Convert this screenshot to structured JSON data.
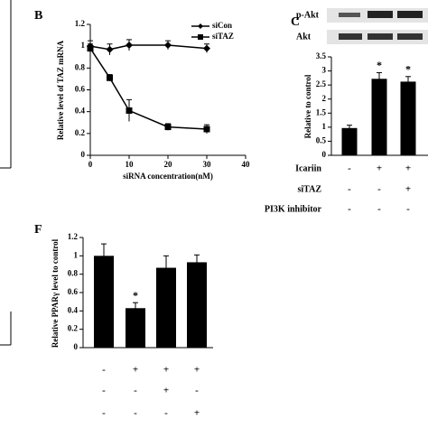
{
  "chart_data": [
    {
      "type": "line",
      "panel": "B",
      "x_label": "siRNA concentration(nM)",
      "y_label": "Relative level of TAZ mRNA",
      "x": [
        0,
        5,
        10,
        20,
        30
      ],
      "xlim": [
        0,
        40
      ],
      "xticks": [
        0,
        10,
        20,
        30,
        40
      ],
      "ylim": [
        0,
        1.2
      ],
      "yticks": [
        0,
        0.2,
        0.4,
        0.6,
        0.8,
        1,
        1.2
      ],
      "series": [
        {
          "name": "siCon",
          "color": "#000000",
          "marker": "diamond",
          "values": [
            1.0,
            0.97,
            1.01,
            1.01,
            0.98
          ],
          "errors": [
            0.05,
            0.05,
            0.05,
            0.04,
            0.04
          ]
        },
        {
          "name": "siTAZ",
          "color": "#000000",
          "marker": "square",
          "values": [
            0.98,
            0.71,
            0.41,
            0.26,
            0.24
          ],
          "errors": [
            0.04,
            0.03,
            0.1,
            0.03,
            0.04
          ]
        }
      ]
    },
    {
      "type": "bar",
      "panel": "C",
      "blots": [
        "p-Akt",
        "Akt"
      ],
      "y_label": "Relative to control",
      "values": [
        0.97,
        2.72,
        2.62
      ],
      "errors": [
        0.1,
        0.22,
        0.18
      ],
      "markers": [
        null,
        "*",
        "*"
      ],
      "color": "#000000",
      "ylim": [
        0,
        3.5
      ],
      "yticks": [
        0,
        0.5,
        1,
        1.5,
        2,
        2.5,
        3,
        3.5
      ],
      "conditions": [
        {
          "name": "Icariin",
          "signs": [
            "-",
            "+",
            "+"
          ]
        },
        {
          "name": "siTAZ",
          "signs": [
            "-",
            "-",
            "+"
          ]
        },
        {
          "name": "PI3K inhibitor",
          "signs": [
            "-",
            "-",
            "-"
          ]
        }
      ]
    },
    {
      "type": "bar",
      "panel": "F",
      "y_label": "Relative PPARγ level to control",
      "values": [
        1.0,
        0.43,
        0.87,
        0.93
      ],
      "errors": [
        0.13,
        0.06,
        0.13,
        0.08
      ],
      "markers": [
        null,
        "*",
        null,
        null
      ],
      "color": "#000000",
      "ylim": [
        0,
        1.2
      ],
      "yticks": [
        0,
        0.2,
        0.4,
        0.6,
        0.8,
        1,
        1.2
      ],
      "conditions": [
        {
          "signs": [
            "-",
            "+",
            "+",
            "+"
          ]
        },
        {
          "signs": [
            "-",
            "-",
            "+",
            "-"
          ]
        },
        {
          "signs": [
            "-",
            "-",
            "-",
            "+"
          ]
        }
      ]
    }
  ]
}
